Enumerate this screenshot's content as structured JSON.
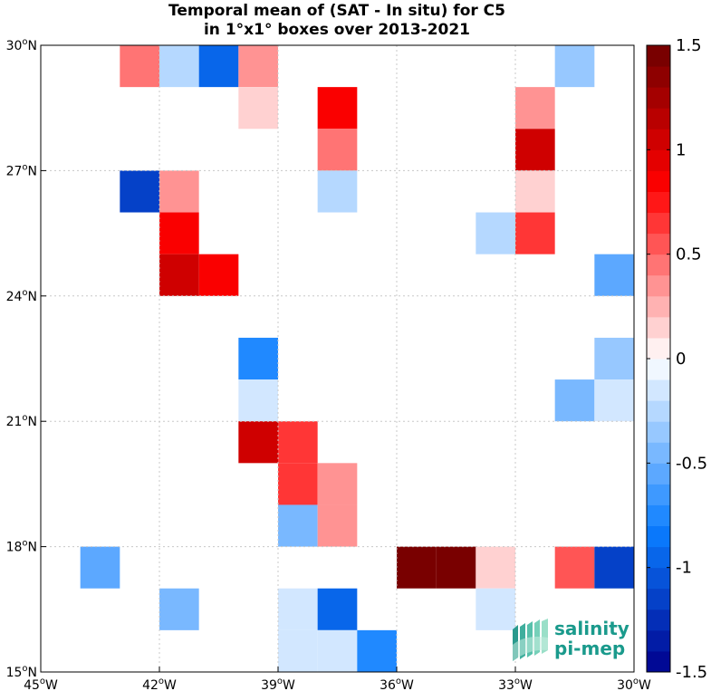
{
  "chart_data": {
    "type": "heatmap",
    "title": "Temporal mean of (SAT - In situ) for C5",
    "subtitle": "in 1°x1° boxes over 2013-2021",
    "xlim": [
      -45,
      -30
    ],
    "ylim": [
      15,
      30
    ],
    "grid": true,
    "x_ticks": [
      {
        "value": -45,
        "label": "45°W"
      },
      {
        "value": -42,
        "label": "42°W"
      },
      {
        "value": -39,
        "label": "39°W"
      },
      {
        "value": -36,
        "label": "36°W"
      },
      {
        "value": -33,
        "label": "33°W"
      },
      {
        "value": -30,
        "label": "30°W"
      }
    ],
    "y_ticks": [
      {
        "value": 15,
        "label": "15°N"
      },
      {
        "value": 18,
        "label": "18°N"
      },
      {
        "value": 21,
        "label": "21°N"
      },
      {
        "value": 24,
        "label": "24°N"
      },
      {
        "value": 27,
        "label": "27°N"
      },
      {
        "value": 30,
        "label": "30°N"
      }
    ],
    "colorbar": {
      "range": [
        -1.5,
        1.5
      ],
      "levels": 30,
      "ticks": [
        {
          "value": 1.5,
          "label": "1.5"
        },
        {
          "value": 1,
          "label": "1"
        },
        {
          "value": 0.5,
          "label": "0.5"
        },
        {
          "value": 0,
          "label": "0"
        },
        {
          "value": -0.5,
          "label": "-0.5"
        },
        {
          "value": -1,
          "label": "-1"
        },
        {
          "value": -1.5,
          "label": "-1.5"
        }
      ]
    },
    "cells": [
      {
        "lon": -43,
        "lat": 29,
        "value": 0.45
      },
      {
        "lon": -42,
        "lat": 29,
        "value": -0.25
      },
      {
        "lon": -41,
        "lat": 29,
        "value": -1.0
      },
      {
        "lon": -40,
        "lat": 29,
        "value": 0.35
      },
      {
        "lon": -32,
        "lat": 29,
        "value": -0.35
      },
      {
        "lon": -40,
        "lat": 28,
        "value": 0.15
      },
      {
        "lon": -38,
        "lat": 28,
        "value": 0.9
      },
      {
        "lon": -33,
        "lat": 28,
        "value": 0.35
      },
      {
        "lon": -38,
        "lat": 27,
        "value": 0.45
      },
      {
        "lon": -33,
        "lat": 27,
        "value": 1.0
      },
      {
        "lon": -43,
        "lat": 26,
        "value": -1.15
      },
      {
        "lon": -42,
        "lat": 26,
        "value": 0.35
      },
      {
        "lon": -38,
        "lat": 26,
        "value": -0.25
      },
      {
        "lon": -33,
        "lat": 26,
        "value": 0.15
      },
      {
        "lon": -42,
        "lat": 25,
        "value": 0.9
      },
      {
        "lon": -34,
        "lat": 25,
        "value": -0.25
      },
      {
        "lon": -33,
        "lat": 25,
        "value": 0.65
      },
      {
        "lon": -42,
        "lat": 24,
        "value": 1.0
      },
      {
        "lon": -41,
        "lat": 24,
        "value": 0.9
      },
      {
        "lon": -31,
        "lat": 24,
        "value": -0.6
      },
      {
        "lon": -40,
        "lat": 22,
        "value": -0.75
      },
      {
        "lon": -31,
        "lat": 22,
        "value": -0.35
      },
      {
        "lon": -40,
        "lat": 21,
        "value": -0.15
      },
      {
        "lon": -32,
        "lat": 21,
        "value": -0.5
      },
      {
        "lon": -31,
        "lat": 21,
        "value": -0.15
      },
      {
        "lon": -40,
        "lat": 20,
        "value": 1.0
      },
      {
        "lon": -39,
        "lat": 20,
        "value": 0.65
      },
      {
        "lon": -39,
        "lat": 19,
        "value": 0.65
      },
      {
        "lon": -38,
        "lat": 19,
        "value": 0.35
      },
      {
        "lon": -39,
        "lat": 18,
        "value": -0.5
      },
      {
        "lon": -38,
        "lat": 18,
        "value": 0.35
      },
      {
        "lon": -44,
        "lat": 17,
        "value": -0.6
      },
      {
        "lon": -36,
        "lat": 17,
        "value": 1.45
      },
      {
        "lon": -35,
        "lat": 17,
        "value": 1.45
      },
      {
        "lon": -34,
        "lat": 17,
        "value": 0.15
      },
      {
        "lon": -32,
        "lat": 17,
        "value": 0.5
      },
      {
        "lon": -31,
        "lat": 17,
        "value": -1.1
      },
      {
        "lon": -42,
        "lat": 16,
        "value": -0.45
      },
      {
        "lon": -39,
        "lat": 16,
        "value": -0.15
      },
      {
        "lon": -38,
        "lat": 16,
        "value": -1.0
      },
      {
        "lon": -34,
        "lat": 16,
        "value": -0.15
      },
      {
        "lon": -39,
        "lat": 15,
        "value": -0.15
      },
      {
        "lon": -38,
        "lat": 15,
        "value": -0.15
      },
      {
        "lon": -37,
        "lat": 15,
        "value": -0.75
      }
    ]
  },
  "logo": {
    "line1": "salinity",
    "line2": "pi-mep",
    "accent": "#1a9a8c"
  }
}
